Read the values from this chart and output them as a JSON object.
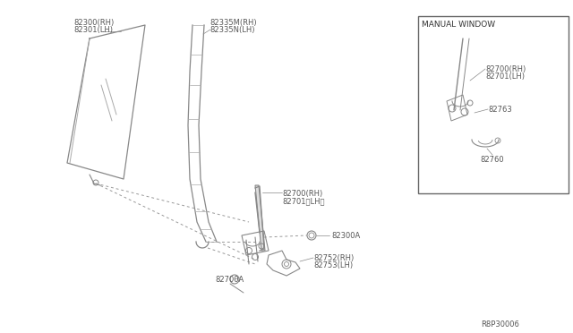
{
  "bg_color": "#ffffff",
  "line_color": "#777777",
  "text_color": "#555555",
  "fig_width": 6.4,
  "fig_height": 3.72,
  "diagram_number": "R8P30006",
  "inset_title": "MANUAL WINDOW",
  "glass_label": [
    "82300(RH)",
    "82301(LH)"
  ],
  "seal_label": [
    "82335M(RH)",
    "82335N(LH)"
  ],
  "reg_label": [
    "82700(RH)",
    "82701〈LH〉"
  ],
  "bolt_label": "82300A",
  "handle_label": [
    "82752(RH)",
    "82753(LH)"
  ],
  "base_label": "82700A",
  "inset_reg_label": [
    "82700(RH)",
    "82701(LH)"
  ],
  "inset_clip_label": "82763",
  "inset_handle_label": "82760"
}
